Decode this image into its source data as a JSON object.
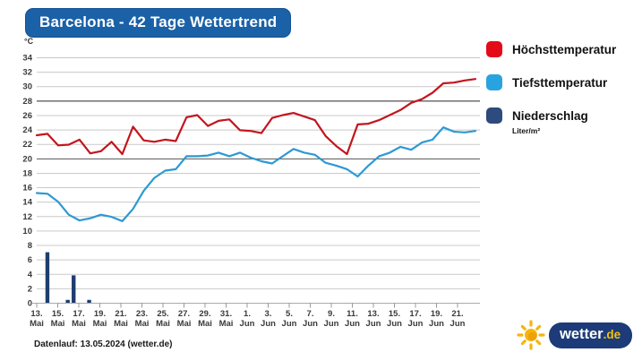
{
  "title": "Barcelona - 42 Tage Wettertrend",
  "footer": "Datenlauf: 13.05.2024 (wetter.de)",
  "logo": {
    "text": "wetter",
    "tld": ".de"
  },
  "legend": [
    {
      "label": "Höchsttemperatur",
      "color": "#e30b17",
      "sublabel": ""
    },
    {
      "label": "Tiefsttemperatur",
      "color": "#29a3e0",
      "sublabel": ""
    },
    {
      "label": "Niederschlag",
      "color": "#2d4b7c",
      "sublabel": "Liter/m²"
    }
  ],
  "chart_data": {
    "type": "line",
    "title": "Barcelona - 42 Tage Wettertrend",
    "xlabel": "",
    "ylabel": "°C",
    "ylim": [
      0,
      34
    ],
    "y_step": 2,
    "grid": "horizontal",
    "legend_position": "right",
    "reference_lines": [
      {
        "value": 28,
        "color": "#262626"
      },
      {
        "value": 20,
        "color": "#555555"
      }
    ],
    "x_ticks": [
      {
        "day": "13.",
        "month": "Mai"
      },
      {
        "day": "15.",
        "month": "Mai"
      },
      {
        "day": "17.",
        "month": "Mai"
      },
      {
        "day": "19.",
        "month": "Mai"
      },
      {
        "day": "21.",
        "month": "Mai"
      },
      {
        "day": "23.",
        "month": "Mai"
      },
      {
        "day": "25.",
        "month": "Mai"
      },
      {
        "day": "27.",
        "month": "Mai"
      },
      {
        "day": "29.",
        "month": "Mai"
      },
      {
        "day": "31.",
        "month": "Mai"
      },
      {
        "day": "1.",
        "month": "Jun"
      },
      {
        "day": "3.",
        "month": "Jun"
      },
      {
        "day": "5.",
        "month": "Jun"
      },
      {
        "day": "7.",
        "month": "Jun"
      },
      {
        "day": "9.",
        "month": "Jun"
      },
      {
        "day": "11.",
        "month": "Jun"
      },
      {
        "day": "13.",
        "month": "Jun"
      },
      {
        "day": "15.",
        "month": "Jun"
      },
      {
        "day": "17.",
        "month": "Jun"
      },
      {
        "day": "19.",
        "month": "Jun"
      },
      {
        "day": "21.",
        "month": "Jun"
      }
    ],
    "series": [
      {
        "name": "Höchsttemperatur",
        "color": "#c3151d",
        "values": [
          23.2,
          23.4,
          21.8,
          21.9,
          22.6,
          20.7,
          21.0,
          22.3,
          20.6,
          24.4,
          22.5,
          22.3,
          22.6,
          22.4,
          25.7,
          26.0,
          24.5,
          25.2,
          25.4,
          23.9,
          23.8,
          23.5,
          25.6,
          26.0,
          26.3,
          25.8,
          25.3,
          23.1,
          21.7,
          20.6,
          24.7,
          24.8,
          25.3,
          26.0,
          26.7,
          27.7,
          28.2,
          29.1,
          30.4,
          30.5,
          30.8,
          31.0
        ]
      },
      {
        "name": "Tiefsttemperatur",
        "color": "#2c99d4",
        "values": [
          15.2,
          15.1,
          14.0,
          12.2,
          11.4,
          11.7,
          12.2,
          11.9,
          11.3,
          13.0,
          15.5,
          17.3,
          18.3,
          18.5,
          20.3,
          20.3,
          20.4,
          20.8,
          20.3,
          20.8,
          20.1,
          19.6,
          19.3,
          20.3,
          21.3,
          20.8,
          20.5,
          19.4,
          19.0,
          18.5,
          17.5,
          19.0,
          20.3,
          20.8,
          21.6,
          21.2,
          22.2,
          22.6,
          24.3,
          23.7,
          23.6,
          23.8
        ]
      }
    ],
    "bars": {
      "name": "Niederschlag",
      "unit": "Liter/m²",
      "color": "#1e3d70",
      "points": [
        {
          "day_index": 1.0,
          "label": "14. Mai",
          "value": 7.0
        },
        {
          "day_index": 2.9,
          "label": "16. Mai",
          "value": 0.4
        },
        {
          "day_index": 3.45,
          "label": "17. Mai",
          "value": 3.8
        },
        {
          "day_index": 4.9,
          "label": "18. Mai",
          "value": 0.4
        }
      ]
    }
  }
}
